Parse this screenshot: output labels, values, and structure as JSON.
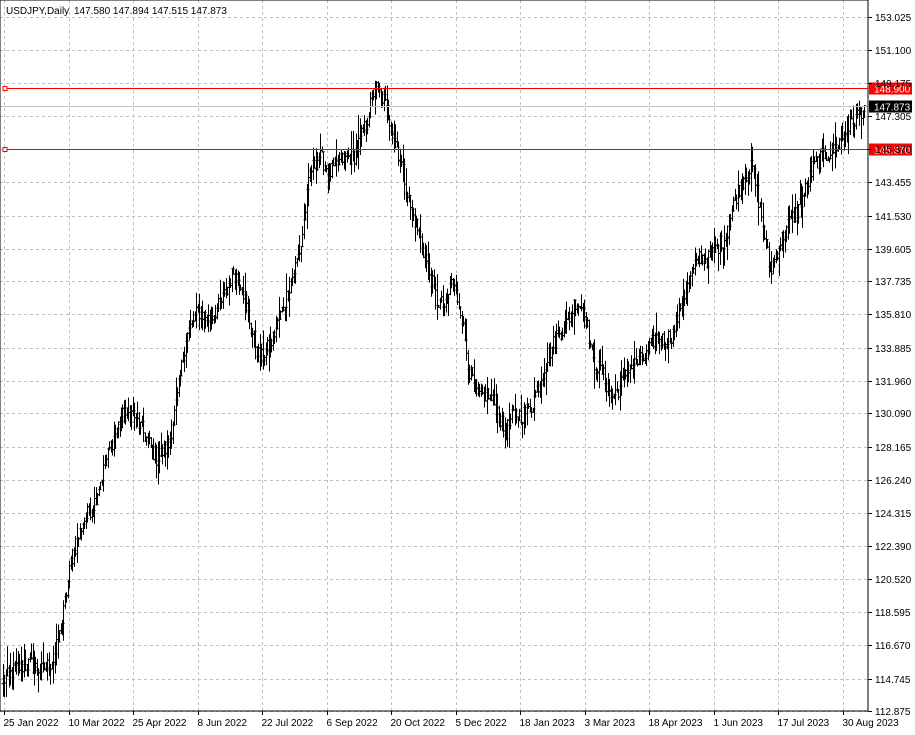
{
  "header": {
    "symbol": "USDJPY,Daily",
    "ohlc": "147.580 147.894 147.515 147.873"
  },
  "colors": {
    "background": "#ffffff",
    "bars": "#000000",
    "grid": "#c0c0c0",
    "hline": "#ff0000",
    "label_bg_red": "#ff0000",
    "label_bg_black": "#000000",
    "bid_line": "#c0c0c0"
  },
  "chart_data": {
    "type": "bar",
    "subtype": "ohlc",
    "title": "USDJPY,Daily",
    "ylim": [
      112.875,
      154.0
    ],
    "y_ticks": [
      "153.025",
      "151.100",
      "149.175",
      "147.305",
      "145.370",
      "143.455",
      "141.530",
      "139.605",
      "137.735",
      "135.810",
      "133.885",
      "131.960",
      "130.090",
      "128.165",
      "126.240",
      "124.315",
      "122.390",
      "120.520",
      "118.595",
      "116.670",
      "114.745",
      "112.875"
    ],
    "x_tick_labels": [
      "25 Jan 2022",
      "10 Mar 2022",
      "25 Apr 2022",
      "8 Jun 2022",
      "22 Jul 2022",
      "6 Sep 2022",
      "20 Oct 2022",
      "5 Dec 2022",
      "18 Jan 2023",
      "3 Mar 2023",
      "18 Apr 2023",
      "1 Jun 2023",
      "17 Jul 2023",
      "30 Aug 2023"
    ],
    "horizontal_lines": [
      {
        "label": "148.900",
        "value": 148.9
      },
      {
        "label": "145.370",
        "value": 145.37
      }
    ],
    "current_price": {
      "label": "147.873",
      "value": 147.873
    },
    "close_path_anchors": [
      [
        0,
        114.6
      ],
      [
        8,
        115.3
      ],
      [
        18,
        115.6
      ],
      [
        26,
        115.2
      ],
      [
        34,
        115.8
      ],
      [
        40,
        118.0
      ],
      [
        46,
        121.5
      ],
      [
        54,
        123.8
      ],
      [
        62,
        125.0
      ],
      [
        72,
        128.0
      ],
      [
        80,
        129.9
      ],
      [
        88,
        130.1
      ],
      [
        96,
        128.8
      ],
      [
        104,
        127.5
      ],
      [
        112,
        128.2
      ],
      [
        118,
        131.0
      ],
      [
        124,
        134.5
      ],
      [
        132,
        136.0
      ],
      [
        140,
        135.5
      ],
      [
        148,
        136.5
      ],
      [
        156,
        138.3
      ],
      [
        162,
        137.5
      ],
      [
        168,
        135.0
      ],
      [
        174,
        133.2
      ],
      [
        182,
        134.2
      ],
      [
        190,
        136.3
      ],
      [
        196,
        138.0
      ],
      [
        202,
        139.8
      ],
      [
        208,
        144.0
      ],
      [
        214,
        145.0
      ],
      [
        222,
        144.0
      ],
      [
        230,
        144.8
      ],
      [
        238,
        145.0
      ],
      [
        246,
        146.8
      ],
      [
        252,
        149.0
      ],
      [
        258,
        148.2
      ],
      [
        264,
        146.5
      ],
      [
        270,
        144.5
      ],
      [
        276,
        142.0
      ],
      [
        282,
        140.5
      ],
      [
        288,
        138.5
      ],
      [
        294,
        136.6
      ],
      [
        300,
        136.2
      ],
      [
        304,
        137.8
      ],
      [
        310,
        136.2
      ],
      [
        316,
        132.5
      ],
      [
        322,
        131.0
      ],
      [
        328,
        131.2
      ],
      [
        334,
        130.5
      ],
      [
        340,
        128.9
      ],
      [
        346,
        130.0
      ],
      [
        352,
        130.0
      ],
      [
        358,
        130.5
      ],
      [
        364,
        132.0
      ],
      [
        370,
        133.5
      ],
      [
        376,
        134.7
      ],
      [
        382,
        135.2
      ],
      [
        388,
        136.6
      ],
      [
        394,
        136.1
      ],
      [
        400,
        133.0
      ],
      [
        406,
        132.5
      ],
      [
        412,
        131.0
      ],
      [
        418,
        131.6
      ],
      [
        424,
        132.8
      ],
      [
        430,
        133.0
      ],
      [
        436,
        133.4
      ],
      [
        442,
        134.5
      ],
      [
        448,
        134.3
      ],
      [
        454,
        134.7
      ],
      [
        460,
        136.6
      ],
      [
        466,
        137.8
      ],
      [
        472,
        139.2
      ],
      [
        478,
        139.0
      ],
      [
        484,
        139.7
      ],
      [
        490,
        140.3
      ],
      [
        496,
        142.5
      ],
      [
        502,
        143.8
      ],
      [
        508,
        144.3
      ],
      [
        514,
        141.5
      ],
      [
        520,
        138.2
      ],
      [
        526,
        139.8
      ],
      [
        532,
        141.0
      ],
      [
        538,
        141.8
      ],
      [
        544,
        143.0
      ],
      [
        550,
        144.5
      ],
      [
        556,
        145.0
      ],
      [
        562,
        145.2
      ],
      [
        568,
        145.9
      ],
      [
        574,
        146.8
      ],
      [
        580,
        147.4
      ],
      [
        584,
        147.873
      ]
    ]
  }
}
